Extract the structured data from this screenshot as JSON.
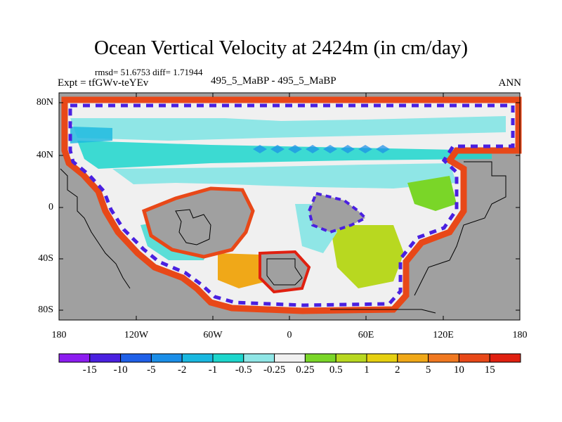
{
  "title": "Ocean Vertical Velocity at 2424m (in cm/day)",
  "stats": "rmsd= 51.6753 diff= 1.71944",
  "experiment": "Expt = tfGWv-teYEv",
  "center_label": "495_5_MaBP - 495_5_MaBP",
  "season": "ANN",
  "lat_ticks": [
    "80N",
    "40N",
    "0",
    "40S",
    "80S"
  ],
  "lon_ticks": [
    "180",
    "120W",
    "60W",
    "0",
    "60E",
    "120E",
    "180"
  ],
  "colorbar": {
    "labels": [
      "-15",
      "-10",
      "-5",
      "-2",
      "-1",
      "-0.5",
      "-0.25",
      "0.25",
      "0.5",
      "1",
      "2",
      "5",
      "10",
      "15"
    ],
    "colors": [
      "#8c1cf0",
      "#4a20e0",
      "#1f60e8",
      "#1a8ee8",
      "#19b8e0",
      "#1cd6cc",
      "#8fe6e6",
      "#f0f0f0",
      "#7ad628",
      "#b8d820",
      "#e6d010",
      "#f0a818",
      "#f07820",
      "#e84818",
      "#e02010"
    ]
  },
  "land_color": "#a0a0a0",
  "ocean_neutral_color": "#f0f0f0"
}
